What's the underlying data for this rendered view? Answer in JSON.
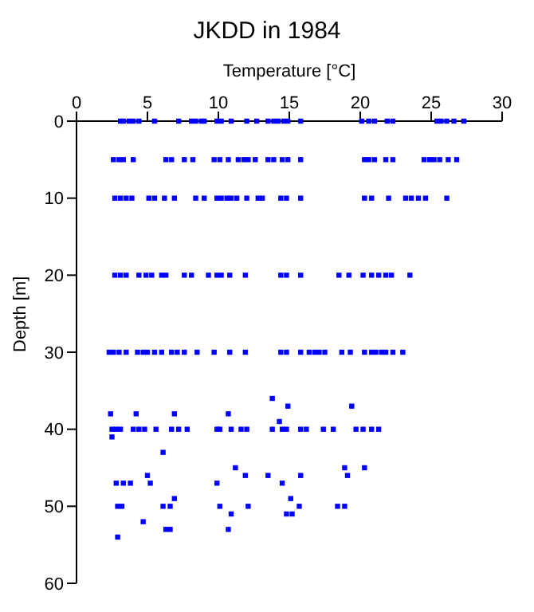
{
  "chart_data": {
    "type": "scatter",
    "title": "JKDD in 1984",
    "xlabel": "Temperature [°C]",
    "ylabel": "Depth [m]",
    "color": "#0000ff",
    "marker": "square",
    "xlim": [
      0,
      30
    ],
    "xticks": [
      0,
      5,
      10,
      15,
      20,
      25,
      30
    ],
    "ylim": [
      60,
      0
    ],
    "yticks": [
      0,
      10,
      20,
      30,
      40,
      50,
      60
    ],
    "x": [
      3.1,
      3.3,
      3.7,
      4.0,
      4.4,
      5.5,
      7.2,
      8.1,
      8.4,
      8.8,
      9.0,
      9.9,
      10.2,
      10.9,
      12.0,
      12.7,
      13.5,
      13.9,
      14.2,
      14.6,
      14.9,
      15.8,
      20.1,
      20.6,
      21.0,
      21.9,
      22.3,
      25.4,
      25.7,
      26.1,
      26.6,
      27.3,
      2.6,
      3.0,
      3.3,
      4.0,
      6.3,
      6.7,
      7.6,
      8.2,
      9.7,
      10.1,
      10.7,
      11.4,
      11.8,
      12.1,
      12.6,
      13.5,
      13.9,
      14.5,
      14.9,
      15.8,
      20.3,
      20.6,
      21.0,
      21.8,
      22.3,
      24.5,
      24.9,
      25.2,
      25.6,
      26.2,
      26.8,
      2.7,
      3.1,
      3.5,
      3.9,
      5.1,
      5.5,
      6.2,
      6.9,
      8.4,
      9.0,
      9.9,
      10.2,
      10.6,
      10.9,
      11.3,
      12.0,
      12.8,
      13.1,
      14.4,
      14.8,
      15.8,
      20.3,
      20.8,
      22.0,
      23.2,
      23.6,
      24.1,
      24.6,
      26.1,
      2.7,
      3.1,
      3.5,
      4.4,
      4.9,
      5.3,
      6.0,
      6.3,
      7.6,
      8.1,
      9.3,
      9.9,
      10.2,
      10.8,
      11.9,
      14.4,
      14.8,
      15.8,
      18.5,
      19.2,
      20.2,
      20.8,
      21.3,
      21.8,
      22.2,
      23.5,
      2.3,
      2.6,
      3.0,
      3.5,
      4.3,
      4.7,
      5.0,
      5.5,
      6.0,
      6.7,
      7.1,
      7.6,
      8.5,
      9.7,
      10.8,
      11.9,
      14.4,
      14.8,
      15.8,
      16.4,
      16.8,
      17.1,
      17.5,
      18.7,
      19.3,
      20.3,
      20.8,
      21.1,
      21.5,
      21.8,
      22.3,
      23.0,
      13.8,
      14.9,
      19.4,
      2.4,
      4.2,
      6.9,
      10.7,
      14.3,
      2.5,
      2.8,
      3.1,
      4.0,
      4.4,
      4.8,
      5.6,
      6.7,
      7.2,
      7.8,
      9.9,
      10.1,
      10.9,
      11.6,
      12.0,
      13.8,
      14.5,
      14.8,
      15.8,
      16.2,
      17.4,
      18.1,
      19.7,
      20.2,
      20.8,
      21.3,
      2.5,
      6.1,
      11.2,
      18.9,
      20.3,
      5.0,
      11.9,
      13.5,
      15.8,
      19.1,
      2.8,
      3.3,
      3.8,
      5.2,
      9.9,
      14.5,
      6.9,
      15.1,
      2.9,
      3.2,
      6.1,
      6.6,
      10.1,
      12.1,
      15.7,
      18.4,
      18.9,
      10.9,
      14.8,
      15.2,
      4.7,
      6.3,
      6.6,
      10.7,
      2.9
    ],
    "values": [
      0,
      0,
      0,
      0,
      0,
      0,
      0,
      0,
      0,
      0,
      0,
      0,
      0,
      0,
      0,
      0,
      0,
      0,
      0,
      0,
      0,
      0,
      0,
      0,
      0,
      0,
      0,
      0,
      0,
      0,
      0,
      0,
      5,
      5,
      5,
      5,
      5,
      5,
      5,
      5,
      5,
      5,
      5,
      5,
      5,
      5,
      5,
      5,
      5,
      5,
      5,
      5,
      5,
      5,
      5,
      5,
      5,
      5,
      5,
      5,
      5,
      5,
      5,
      10,
      10,
      10,
      10,
      10,
      10,
      10,
      10,
      10,
      10,
      10,
      10,
      10,
      10,
      10,
      10,
      10,
      10,
      10,
      10,
      10,
      10,
      10,
      10,
      10,
      10,
      10,
      10,
      10,
      20,
      20,
      20,
      20,
      20,
      20,
      20,
      20,
      20,
      20,
      20,
      20,
      20,
      20,
      20,
      20,
      20,
      20,
      20,
      20,
      20,
      20,
      20,
      20,
      20,
      20,
      30,
      30,
      30,
      30,
      30,
      30,
      30,
      30,
      30,
      30,
      30,
      30,
      30,
      30,
      30,
      30,
      30,
      30,
      30,
      30,
      30,
      30,
      30,
      30,
      30,
      30,
      30,
      30,
      30,
      30,
      30,
      30,
      36,
      37,
      37,
      38,
      38,
      38,
      38,
      39,
      40,
      40,
      40,
      40,
      40,
      40,
      40,
      40,
      40,
      40,
      40,
      40,
      40,
      40,
      40,
      40,
      40,
      40,
      40,
      40,
      40,
      40,
      40,
      40,
      40,
      40,
      41,
      43,
      45,
      45,
      45,
      46,
      46,
      46,
      46,
      46,
      47,
      47,
      47,
      47,
      47,
      47,
      49,
      49,
      50,
      50,
      50,
      50,
      50,
      50,
      50,
      50,
      50,
      51,
      51,
      51,
      52,
      53,
      53,
      53,
      54
    ]
  }
}
